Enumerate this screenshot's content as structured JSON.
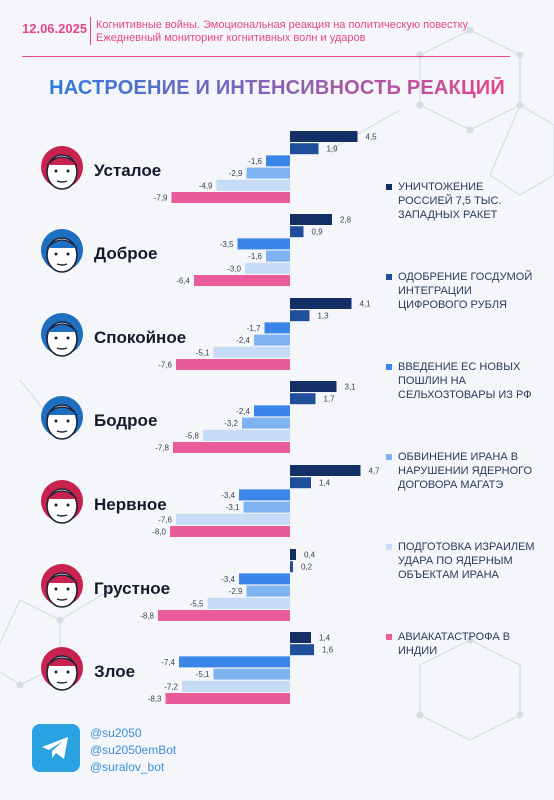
{
  "header": {
    "date": "12.06.2025",
    "line1": "Когнитивные войны. Эмоциональная реакция на политическую повестку",
    "line2": "Ежедневный мониторинг когнитивных волн и ударов"
  },
  "title": "НАСТРОЕНИЕ И ИНТЕНСИВНОСТЬ РЕАКЦИЙ",
  "chart_data": {
    "type": "bar",
    "orientation": "horizontal",
    "categories": [
      "Усталое",
      "Доброе",
      "Спокойное",
      "Бодрое",
      "Нервное",
      "Грустное",
      "Злое"
    ],
    "series": [
      {
        "name": "УНИЧТОЖЕНИЕ РОССИЕЙ 7,5 ТЫС. ЗАПАДНЫХ РАКЕТ",
        "color": "#132f66",
        "values": [
          4.5,
          2.8,
          4.1,
          3.1,
          4.7,
          0.4,
          1.4
        ]
      },
      {
        "name": "ОДОБРЕНИЕ ГОСДУМОЙ ИНТЕГРАЦИИ ЦИФРОВОГО РУБЛЯ",
        "color": "#1f4e9a",
        "values": [
          1.9,
          0.9,
          1.3,
          1.7,
          1.4,
          0.2,
          1.6
        ]
      },
      {
        "name": "ВВЕДЕНИЕ ЕС НОВЫХ ПОШЛИН НА СЕЛЬХОЗТОВАРЫ ИЗ РФ",
        "color": "#3a86e8",
        "values": [
          -1.6,
          -3.5,
          -1.7,
          -2.4,
          -3.4,
          -3.4,
          -7.4
        ]
      },
      {
        "name": "ОБВИНЕНИЕ ИРАНА В НАРУШЕНИИ ЯДЕРНОГО ДОГОВОРА МАГАТЭ",
        "color": "#7fb2f0",
        "values": [
          -2.9,
          -1.6,
          -2.4,
          -3.2,
          -3.1,
          -2.9,
          -5.1
        ]
      },
      {
        "name": "ПОДГОТОВКА ИЗРАИЛЕМ УДАРА ПО ЯДЕРНЫМ ОБЪЕКТАМ ИРАНА",
        "color": "#c5dbf6",
        "values": [
          -4.9,
          -3.0,
          -5.1,
          -5.8,
          -7.6,
          -5.5,
          -7.2
        ]
      },
      {
        "name": "АВИАКАТАСТРОФА В ИНДИИ",
        "color": "#ea5b9a",
        "values": [
          -7.9,
          -6.4,
          -7.6,
          -7.8,
          -8.0,
          -8.8,
          -8.3
        ]
      }
    ],
    "value_labels": [
      [
        "4,5",
        "1,9",
        "-1,6",
        "-2,9",
        "-4,9",
        "-7,9"
      ],
      [
        "2,8",
        "0,9",
        "-3,5",
        "-1,6",
        "-3,0",
        "-6,4"
      ],
      [
        "4,1",
        "1,3",
        "-1,7",
        "-2,4",
        "-5,1",
        "-7,6"
      ],
      [
        "3,1",
        "1,7",
        "-2,4",
        "-3,2",
        "-5,8",
        "-7,8"
      ],
      [
        "4,7",
        "1,4",
        "-3,4",
        "-3,1",
        "-7,6",
        "-8,0"
      ],
      [
        "0,4",
        "0,2",
        "-3,4",
        "-2,9",
        "-5,5",
        "-8,8"
      ],
      [
        "1,4",
        "1,6",
        "-7,4",
        "-5,1",
        "-7,2",
        "-8,3"
      ]
    ],
    "face_colors": [
      "#c8234f",
      "#1f6fc0",
      "#1f6fc0",
      "#1f6fc0",
      "#c8234f",
      "#c8234f",
      "#c8234f"
    ]
  },
  "footer": {
    "icon": "telegram-icon",
    "handles": [
      "@su2050",
      "@su2050emBot",
      "@suralov_bot"
    ]
  }
}
